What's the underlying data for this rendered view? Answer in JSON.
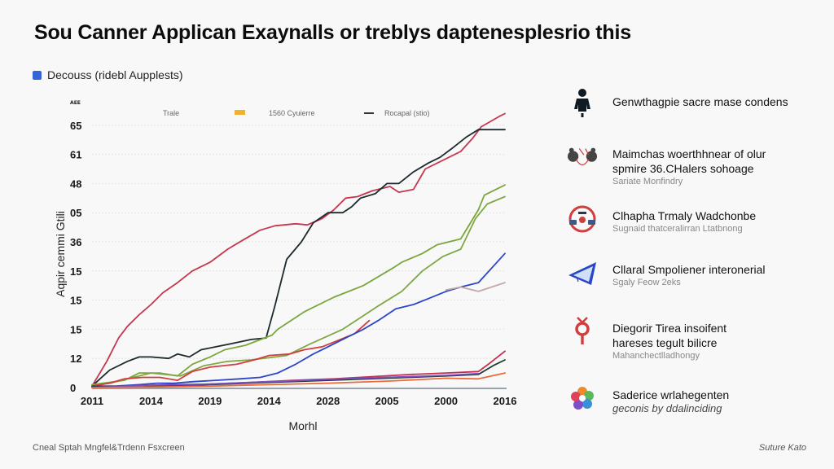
{
  "header": {
    "title": "Sou Canner Applican Exaynalls or treblys daptenesplesrio this",
    "series_tag": "Decouss (ridebl Aupplests)",
    "series_tag_color": "#3563d9"
  },
  "chart_data": {
    "type": "line",
    "title": "",
    "xlabel": "Morhl",
    "ylabel": "Aqpir cemmi Gtili",
    "y_corner_label": "ᴀᴇᴇ",
    "y_tick_labels": [
      "0",
      "12",
      "15",
      "15",
      "15",
      "36",
      "05",
      "48",
      "61",
      "65"
    ],
    "ylim": [
      0,
      9.4
    ],
    "x_tick_labels": [
      "2011",
      "2014",
      "2019",
      "2014",
      "2028",
      "2005",
      "2000",
      "2016"
    ],
    "xlim": [
      0,
      7
    ],
    "grid": true,
    "legend": {
      "placement": "top",
      "entries": [
        {
          "label": "Trale",
          "swatch": "none",
          "color": "#888888"
        },
        {
          "label": "1560 Cyuierre",
          "swatch": "box",
          "color": "#f0b030"
        },
        {
          "label": "Rocapal (stio)",
          "swatch": "line",
          "color": "#333333"
        }
      ]
    },
    "series": [
      {
        "name": "Red (top)",
        "color": "#c8364e",
        "x": [
          0,
          0.25,
          0.45,
          0.6,
          0.8,
          1.0,
          1.2,
          1.45,
          1.7,
          2.0,
          2.3,
          2.55,
          2.85,
          3.1,
          3.45,
          3.65,
          3.9,
          4.1,
          4.3,
          4.5,
          4.75,
          5.05,
          5.2,
          5.45,
          5.65,
          6.05,
          6.25,
          6.45,
          6.6,
          6.9,
          7.0
        ],
        "y": [
          0.05,
          0.9,
          1.7,
          2.1,
          2.5,
          2.85,
          3.25,
          3.6,
          4.0,
          4.3,
          4.75,
          5.05,
          5.4,
          5.55,
          5.62,
          5.58,
          5.8,
          6.1,
          6.5,
          6.55,
          6.75,
          6.9,
          6.7,
          6.8,
          7.5,
          7.9,
          8.1,
          8.55,
          8.95,
          9.3,
          9.4
        ]
      },
      {
        "name": "Black",
        "color": "#1c2a2e",
        "x": [
          0,
          0.3,
          0.6,
          0.8,
          1.0,
          1.3,
          1.45,
          1.65,
          1.85,
          2.1,
          2.35,
          2.7,
          2.95,
          3.1,
          3.3,
          3.55,
          3.75,
          4.0,
          4.25,
          4.4,
          4.55,
          4.8,
          5.0,
          5.2,
          5.45,
          5.7,
          5.9,
          6.1,
          6.35,
          6.55,
          7.0
        ],
        "y": [
          0.05,
          0.6,
          0.9,
          1.05,
          1.05,
          1.0,
          1.15,
          1.05,
          1.3,
          1.4,
          1.5,
          1.65,
          1.7,
          2.8,
          4.4,
          5.0,
          5.65,
          6.0,
          6.0,
          6.2,
          6.5,
          6.65,
          7.0,
          7.0,
          7.4,
          7.7,
          7.9,
          8.2,
          8.6,
          8.85,
          8.85
        ]
      },
      {
        "name": "Green (upper)",
        "color": "#7aa63c",
        "x": [
          0,
          0.55,
          0.8,
          1.15,
          1.45,
          1.7,
          2.0,
          2.25,
          2.6,
          3.05,
          3.15,
          3.6,
          4.1,
          4.35,
          4.6,
          5.1,
          5.25,
          5.6,
          5.85,
          6.25,
          6.55,
          6.65,
          7.0
        ],
        "y": [
          0.1,
          0.25,
          0.5,
          0.5,
          0.4,
          0.8,
          1.05,
          1.3,
          1.45,
          1.8,
          2.0,
          2.6,
          3.1,
          3.3,
          3.5,
          4.1,
          4.3,
          4.6,
          4.9,
          5.1,
          6.1,
          6.6,
          6.95
        ]
      },
      {
        "name": "Green (lower)",
        "color": "#7fa844",
        "x": [
          0,
          0.3,
          0.6,
          1.0,
          1.5,
          1.9,
          2.3,
          2.7,
          3.3,
          3.7,
          4.25,
          4.55,
          4.85,
          5.25,
          5.6,
          5.95,
          6.25,
          6.5,
          6.7,
          7.0
        ],
        "y": [
          0.1,
          0.15,
          0.3,
          0.5,
          0.4,
          0.75,
          0.9,
          0.95,
          1.1,
          1.5,
          2.0,
          2.4,
          2.8,
          3.3,
          4.0,
          4.5,
          4.75,
          5.8,
          6.3,
          6.55
        ]
      },
      {
        "name": "Red (middle)",
        "color": "#d23d3d",
        "x": [
          0,
          0.3,
          0.55,
          0.85,
          1.15,
          1.45,
          1.7,
          2.0,
          2.45,
          2.75,
          3.0,
          3.35,
          3.6,
          3.9,
          4.15,
          4.45,
          4.7
        ],
        "y": [
          0.05,
          0.15,
          0.3,
          0.35,
          0.35,
          0.25,
          0.55,
          0.7,
          0.8,
          0.95,
          1.1,
          1.15,
          1.3,
          1.4,
          1.6,
          1.85,
          2.3
        ]
      },
      {
        "name": "Blue",
        "color": "#2b47c8",
        "x": [
          0,
          0.4,
          0.8,
          1.1,
          1.4,
          1.7,
          2.1,
          2.5,
          2.85,
          3.15,
          3.45,
          3.75,
          4.0,
          4.3,
          4.6,
          4.85,
          5.15,
          5.45,
          5.7,
          6.0,
          6.25,
          6.55,
          7.0
        ],
        "y": [
          0.05,
          0.05,
          0.1,
          0.15,
          0.15,
          0.2,
          0.25,
          0.3,
          0.35,
          0.5,
          0.8,
          1.15,
          1.4,
          1.7,
          2.0,
          2.3,
          2.7,
          2.85,
          3.05,
          3.3,
          3.45,
          3.6,
          4.6
        ]
      },
      {
        "name": "Mauve",
        "color": "#c2a8a8",
        "x": [
          6.0,
          6.25,
          6.55,
          7.0
        ],
        "y": [
          3.35,
          3.45,
          3.3,
          3.6
        ]
      },
      {
        "name": "Crimson (low)",
        "color": "#c2304f",
        "x": [
          0,
          0.6,
          1.3,
          2.0,
          2.7,
          3.4,
          4.1,
          4.8,
          5.4,
          6.0,
          6.55,
          6.75,
          7.0
        ],
        "y": [
          0.02,
          0.05,
          0.1,
          0.12,
          0.18,
          0.25,
          0.3,
          0.38,
          0.45,
          0.5,
          0.55,
          0.85,
          1.25
        ]
      },
      {
        "name": "Dark green (low)",
        "color": "#1f3b2b",
        "x": [
          0,
          1.0,
          2.0,
          3.0,
          4.0,
          5.0,
          6.0,
          6.55,
          6.8,
          7.0
        ],
        "y": [
          0.02,
          0.06,
          0.1,
          0.18,
          0.25,
          0.32,
          0.4,
          0.45,
          0.75,
          0.95
        ]
      },
      {
        "name": "Purple (low)",
        "color": "#7a4fc2",
        "x": [
          0,
          1.0,
          2.0,
          3.0,
          4.0,
          5.0,
          6.0,
          6.55
        ],
        "y": [
          0.0,
          0.08,
          0.12,
          0.2,
          0.28,
          0.35,
          0.42,
          0.48
        ]
      },
      {
        "name": "Orange (low)",
        "color": "#ec6a3c",
        "x": [
          0,
          1.0,
          2.0,
          3.0,
          4.0,
          5.0,
          6.0,
          6.55,
          7.0
        ],
        "y": [
          0.0,
          0.02,
          0.05,
          0.1,
          0.15,
          0.22,
          0.32,
          0.3,
          0.5
        ]
      }
    ]
  },
  "sidebar": {
    "items": [
      {
        "icon": "person-icon",
        "heading": [
          "Genwthagpie sacre mase condens"
        ],
        "sub": ""
      },
      {
        "icon": "two-figures-icon",
        "heading": [
          "Maimchas woerthhnear of olur",
          "spmire 36.CHalers sohoage"
        ],
        "sub": "Sariate Monfindry"
      },
      {
        "icon": "red-ring-icon",
        "heading": [
          "Clhapha Trmaly Wadchonbe"
        ],
        "sub": "Sugnaid thatceralirran Ltatbnong"
      },
      {
        "icon": "paper-plane-icon",
        "heading": [
          "Cllaral Smpoliener interonerial"
        ],
        "sub": "Sgaly Feow 2eks"
      },
      {
        "icon": "venus-symbol-icon",
        "heading": [
          "Diegorir Tirea insoifent",
          "hareses tegult bilicre"
        ],
        "sub": "Mahanchectlladhongy"
      },
      {
        "icon": "color-flower-icon",
        "heading": [
          "Saderice wrlahegenten"
        ],
        "sub": "geconis by ddalinciding",
        "sub_italic": true
      }
    ]
  },
  "footer": {
    "left": "Cneal Sptah Mngfel&Trdenn Fsxcreen",
    "right": "Suture Kato"
  }
}
